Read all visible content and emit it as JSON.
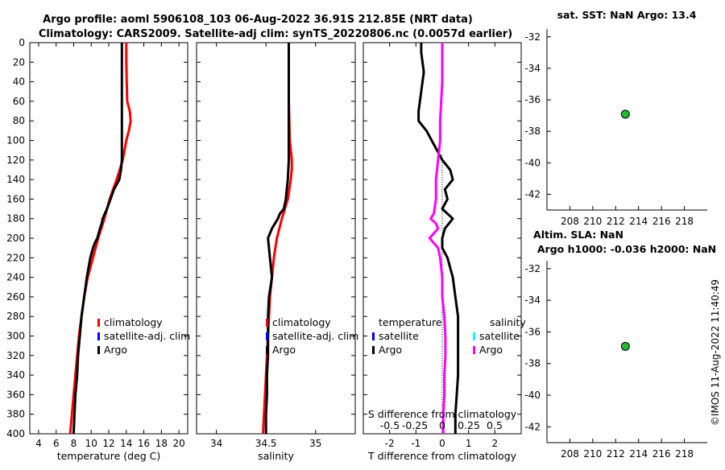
{
  "header": {
    "line1": "Argo profile: aoml 5906108_103 06-Aug-2022 36.91S 212.85E (NRT data)",
    "line2": "Climatology: CARS2009. Satellite-adj clim: synTS_20220806.nc (0.0057d earlier)"
  },
  "footer_stamp": "©IMOS 11-Aug-2022 11:40:49",
  "colors": {
    "climatology": "#ff0000",
    "satellite": "#0000ff",
    "argo": "#000000",
    "salinity_diff": "#ff00ff",
    "salinity_sat": "#00ffff",
    "dot": "#22bb33"
  },
  "chart_data": [
    {
      "type": "line",
      "id": "temperature",
      "xlabel": "temperature (deg C)",
      "xlim": [
        3,
        21
      ],
      "xticks": [
        4,
        6,
        8,
        10,
        12,
        14,
        16,
        18,
        20
      ],
      "ylim": [
        0,
        400
      ],
      "yticks": [
        0,
        20,
        40,
        60,
        80,
        100,
        120,
        140,
        160,
        180,
        200,
        220,
        240,
        260,
        280,
        300,
        320,
        340,
        360,
        380,
        400
      ],
      "y_reversed": true,
      "legend": [
        "climatology",
        "satellite-adj. clim",
        "Argo"
      ],
      "series": [
        {
          "name": "climatology",
          "color": "#ff0000",
          "depth": [
            0,
            20,
            40,
            60,
            70,
            80,
            90,
            100,
            120,
            140,
            160,
            180,
            200,
            220,
            240,
            260,
            280,
            300,
            320,
            340,
            360,
            380,
            400
          ],
          "values": [
            14.0,
            14.0,
            14.05,
            14.1,
            14.4,
            14.5,
            14.3,
            14.0,
            13.6,
            12.9,
            12.1,
            11.5,
            10.8,
            10.2,
            9.6,
            9.2,
            8.9,
            8.6,
            8.4,
            8.2,
            8.0,
            7.8,
            7.6
          ]
        },
        {
          "name": "Argo",
          "color": "#000000",
          "depth": [
            0,
            20,
            60,
            100,
            120,
            130,
            140,
            145,
            150,
            160,
            170,
            180,
            185,
            190,
            200,
            205,
            210,
            220,
            240,
            260,
            280,
            300,
            320,
            340,
            360,
            380,
            400
          ],
          "values": [
            13.5,
            13.5,
            13.5,
            13.5,
            13.5,
            13.4,
            13.2,
            12.9,
            12.6,
            12.2,
            11.8,
            11.3,
            11.2,
            11.0,
            10.7,
            10.4,
            10.2,
            9.9,
            9.5,
            9.2,
            8.9,
            8.7,
            8.5,
            8.4,
            8.2,
            8.1,
            8.0
          ]
        }
      ]
    },
    {
      "type": "line",
      "id": "salinity",
      "xlabel": "salinity",
      "xlim": [
        33.8,
        35.4
      ],
      "xticks": [
        34,
        34.5,
        35
      ],
      "xticklabels": [
        "34",
        "34.5",
        "35"
      ],
      "ylim": [
        0,
        400
      ],
      "y_reversed": true,
      "legend": [
        "climatology",
        "satellite-adj. clim",
        "Argo"
      ],
      "series": [
        {
          "name": "climatology",
          "color": "#ff0000",
          "depth": [
            0,
            20,
            60,
            100,
            110,
            120,
            130,
            140,
            160,
            180,
            200,
            220,
            240,
            260,
            280,
            300,
            320,
            340,
            360,
            380,
            400
          ],
          "values": [
            34.73,
            34.73,
            34.73,
            34.74,
            34.75,
            34.76,
            34.76,
            34.75,
            34.72,
            34.66,
            34.61,
            34.58,
            34.56,
            34.54,
            34.53,
            34.52,
            34.51,
            34.5,
            34.49,
            34.48,
            34.47
          ]
        },
        {
          "name": "Argo",
          "color": "#000000",
          "depth": [
            0,
            20,
            60,
            100,
            120,
            140,
            150,
            160,
            170,
            175,
            180,
            190,
            200,
            220,
            240,
            260,
            280,
            300,
            320,
            340,
            360,
            380,
            400
          ],
          "values": [
            34.73,
            34.73,
            34.73,
            34.73,
            34.73,
            34.72,
            34.71,
            34.7,
            34.68,
            34.64,
            34.62,
            34.56,
            34.52,
            34.54,
            34.56,
            34.53,
            34.52,
            34.52,
            34.52,
            34.51,
            34.51,
            34.5,
            34.5
          ]
        }
      ]
    },
    {
      "type": "line",
      "id": "difference",
      "xlabel": "T difference from climatology",
      "xlim": [
        -3,
        3
      ],
      "xticks": [
        -2,
        -1,
        0,
        1,
        2
      ],
      "top_label": "S difference from climatology",
      "top_ticks": [
        "-0.5",
        "-0.25",
        "0",
        "0.25",
        "0.5"
      ],
      "ylim": [
        0,
        400
      ],
      "y_reversed": true,
      "legend_left": {
        "title": "temperature",
        "items": [
          "satellite",
          "Argo"
        ]
      },
      "legend_right": {
        "title": "salinity",
        "items": [
          "satellite",
          "Argo"
        ]
      },
      "series": [
        {
          "name": "temperature Argo",
          "color": "#000000",
          "depth": [
            0,
            10,
            30,
            50,
            70,
            80,
            90,
            100,
            110,
            120,
            130,
            140,
            150,
            160,
            170,
            180,
            190,
            200,
            210,
            220,
            240,
            260,
            280,
            300,
            320,
            340,
            360,
            380,
            400
          ],
          "values": [
            -0.8,
            -0.8,
            -0.7,
            -0.8,
            -0.9,
            -0.9,
            -0.6,
            -0.4,
            -0.2,
            0.0,
            0.3,
            0.4,
            0.1,
            0.2,
            0.0,
            0.4,
            0.1,
            0.0,
            0.0,
            0.2,
            0.4,
            0.5,
            0.6,
            0.6,
            0.6,
            0.6,
            0.55,
            0.5,
            0.5
          ]
        },
        {
          "name": "salinity Argo",
          "color": "#ff00ff",
          "depth": [
            0,
            40,
            80,
            100,
            120,
            140,
            160,
            175,
            180,
            185,
            190,
            200,
            210,
            220,
            240,
            260,
            280,
            300,
            320,
            340,
            360,
            380,
            400
          ],
          "values": [
            0.0,
            0.0,
            -0.02,
            -0.02,
            -0.04,
            -0.06,
            -0.06,
            -0.08,
            -0.11,
            -0.06,
            -0.04,
            -0.12,
            -0.04,
            -0.02,
            0.0,
            0.0,
            0.02,
            0.03,
            0.03,
            0.02,
            0.02,
            0.01,
            0.01
          ]
        }
      ]
    },
    {
      "type": "scatter",
      "id": "sst",
      "title": "sat. SST: NaN Argo: 13.4",
      "xlim": [
        206,
        220
      ],
      "xticks": [
        208,
        210,
        212,
        214,
        216,
        218
      ],
      "ylim": [
        -43,
        -31.5
      ],
      "yticks": [
        -32,
        -34,
        -36,
        -38,
        -40,
        -42
      ],
      "points": [
        {
          "x": 212.85,
          "y": -36.91
        }
      ]
    },
    {
      "type": "scatter",
      "id": "sla",
      "title": "Altim. SLA: NaN",
      "subtitle": "Argo h1000: -0.036 h2000: NaN",
      "xlim": [
        206,
        220
      ],
      "xticks": [
        208,
        210,
        212,
        214,
        216,
        218
      ],
      "ylim": [
        -43,
        -31.5
      ],
      "yticks": [
        -32,
        -34,
        -36,
        -38,
        -40,
        -42
      ],
      "points": [
        {
          "x": 212.85,
          "y": -36.91
        }
      ]
    }
  ]
}
